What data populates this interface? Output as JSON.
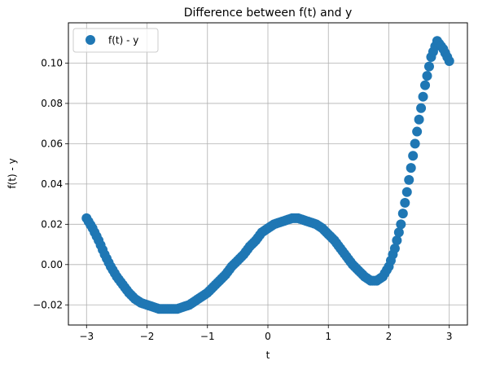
{
  "chart_data": {
    "type": "scatter",
    "title": "Difference between f(t) and y",
    "xlabel": "t",
    "ylabel": "f(t) - y",
    "xlim": [
      -3.3,
      3.3
    ],
    "ylim": [
      -0.03,
      0.12
    ],
    "xticks": [
      -3,
      -2,
      -1,
      0,
      1,
      2,
      3
    ],
    "xtick_labels": [
      "−3",
      "−2",
      "−1",
      "0",
      "1",
      "2",
      "3"
    ],
    "yticks": [
      -0.02,
      0.0,
      0.02,
      0.04,
      0.06,
      0.08,
      0.1
    ],
    "ytick_labels": [
      "−0.02",
      "0.00",
      "0.02",
      "0.04",
      "0.06",
      "0.08",
      "0.10"
    ],
    "grid": true,
    "legend_position": "upper-left",
    "series": [
      {
        "name": "f(t) - y",
        "color": "#1f77b4",
        "x": [
          -3.0,
          -2.9,
          -2.8,
          -2.7,
          -2.6,
          -2.5,
          -2.4,
          -2.3,
          -2.2,
          -2.1,
          -2.0,
          -1.9,
          -1.8,
          -1.7,
          -1.6,
          -1.5,
          -1.4,
          -1.3,
          -1.2,
          -1.1,
          -1.0,
          -0.9,
          -0.8,
          -0.7,
          -0.6,
          -0.5,
          -0.4,
          -0.3,
          -0.2,
          -0.1,
          0.0,
          0.1,
          0.2,
          0.3,
          0.4,
          0.5,
          0.6,
          0.7,
          0.8,
          0.9,
          1.0,
          1.1,
          1.2,
          1.3,
          1.4,
          1.5,
          1.6,
          1.7,
          1.8,
          1.9,
          2.0,
          2.1,
          2.2,
          2.3,
          2.4,
          2.5,
          2.6,
          2.7,
          2.8,
          2.9,
          3.0
        ],
        "y": [
          0.023,
          0.018,
          0.012,
          0.005,
          -0.001,
          -0.006,
          -0.01,
          -0.014,
          -0.017,
          -0.019,
          -0.02,
          -0.021,
          -0.022,
          -0.022,
          -0.022,
          -0.022,
          -0.021,
          -0.02,
          -0.018,
          -0.016,
          -0.014,
          -0.011,
          -0.008,
          -0.005,
          -0.001,
          0.002,
          0.005,
          0.009,
          0.012,
          0.016,
          0.018,
          0.02,
          0.021,
          0.022,
          0.023,
          0.023,
          0.022,
          0.021,
          0.02,
          0.018,
          0.015,
          0.012,
          0.008,
          0.004,
          0.0,
          -0.003,
          -0.006,
          -0.008,
          -0.008,
          -0.006,
          -0.001,
          0.008,
          0.02,
          0.036,
          0.054,
          0.072,
          0.089,
          0.103,
          0.111,
          0.107,
          0.101
        ]
      }
    ]
  }
}
